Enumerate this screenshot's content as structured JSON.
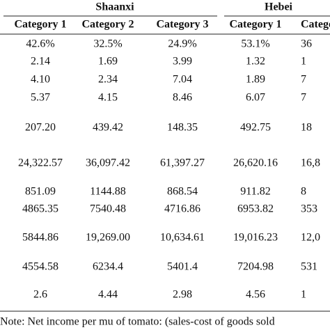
{
  "header": {
    "groups": [
      "Shaanxi",
      "Hebei"
    ],
    "columns": [
      "Category 1",
      "Category 2",
      "Category 3",
      "Category 1",
      "Category"
    ]
  },
  "table": {
    "rows": [
      [
        "42.6%",
        "32.5%",
        "24.9%",
        "53.1%",
        "36"
      ],
      [
        "2.14",
        "1.69",
        "3.99",
        "1.32",
        "1"
      ],
      [
        "4.10",
        "2.34",
        "7.04",
        "1.89",
        "7"
      ],
      [
        "5.37",
        "4.15",
        "8.46",
        "6.07",
        "7"
      ],
      [
        "207.20",
        "439.42",
        "148.35",
        "492.75",
        "18"
      ],
      [
        "24,322.57",
        "36,097.42",
        "61,397.27",
        "26,620.16",
        "16,8"
      ],
      [
        "851.09",
        "1144.88",
        "868.54",
        "911.82",
        "8"
      ],
      [
        "4865.35",
        "7540.48",
        "4716.86",
        "6953.82",
        "353"
      ],
      [
        "5844.86",
        "19,269.00",
        "10,634.61",
        "19,016.23",
        "12,0"
      ],
      [
        "4554.58",
        "6234.4",
        "5401.4",
        "7204.98",
        "531"
      ],
      [
        "2.6",
        "4.44",
        "2.98",
        "4.56",
        "1"
      ]
    ]
  },
  "note": "Note: Net income per mu of tomato: (sales-cost of goods sold"
}
